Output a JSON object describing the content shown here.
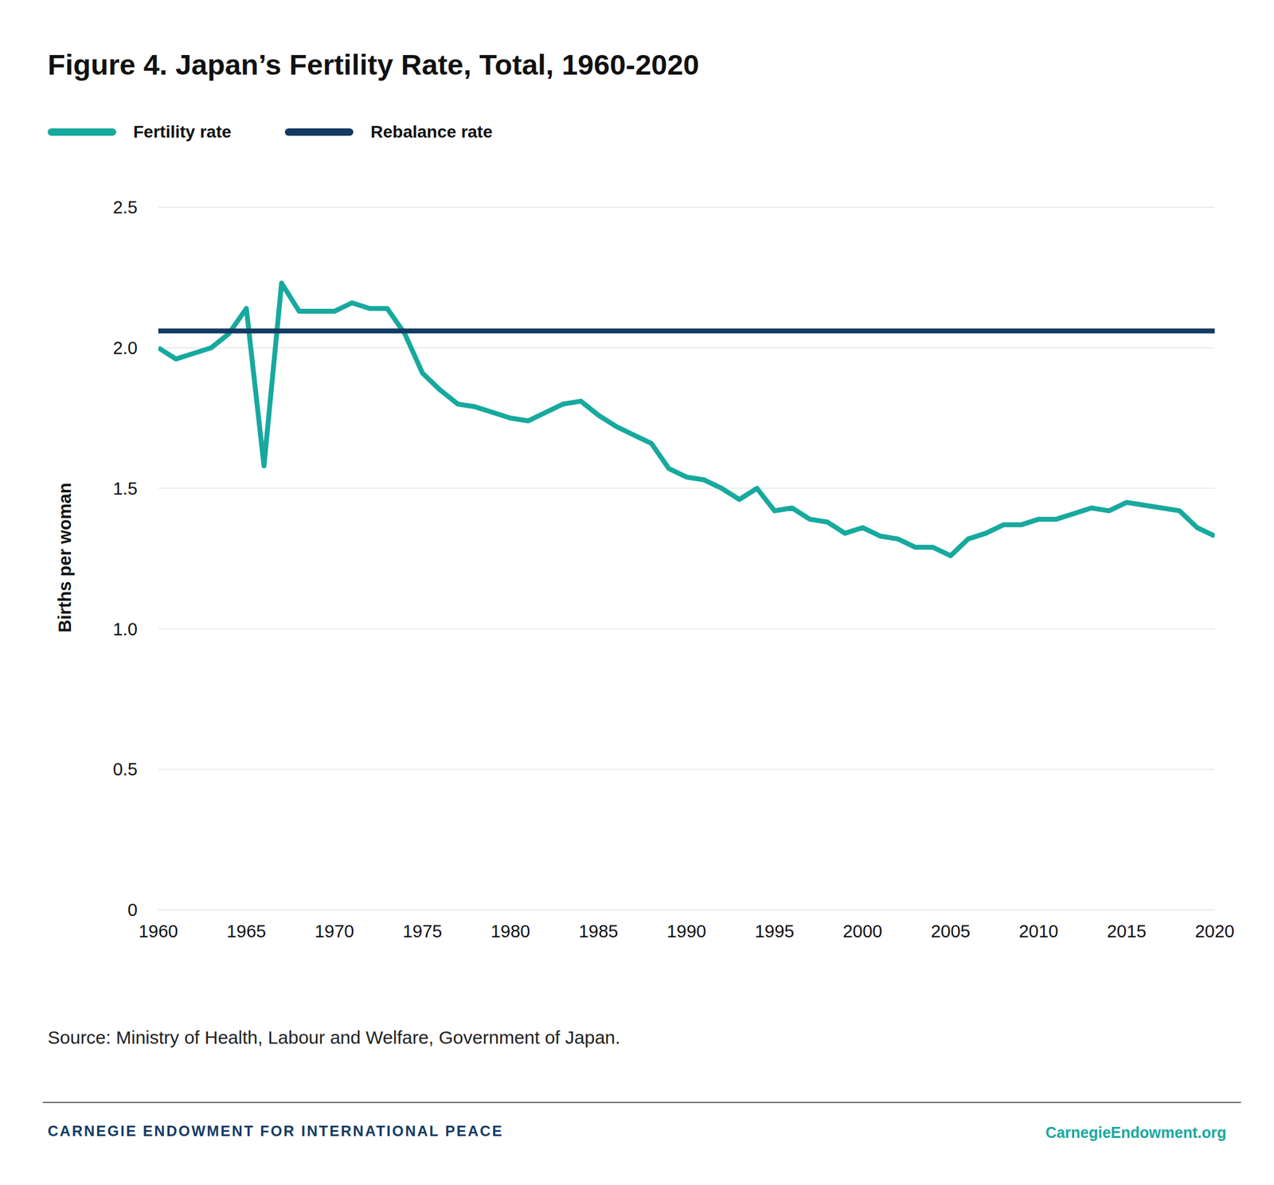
{
  "chart_data": {
    "type": "line",
    "title": "Figure 4. Japan’s Fertility Rate, Total, 1960-2020",
    "y_label": "Births per woman",
    "source": "Source: Ministry of Health, Labour and Welfare, Government of Japan.",
    "footer": {
      "left": "CARNEGIE ENDOWMENT FOR INTERNATIONAL PEACE",
      "right": "CarnegieEndowment.org"
    },
    "x": [
      1960,
      1961,
      1962,
      1963,
      1964,
      1965,
      1966,
      1967,
      1968,
      1969,
      1970,
      1971,
      1972,
      1973,
      1974,
      1975,
      1976,
      1977,
      1978,
      1979,
      1980,
      1981,
      1982,
      1983,
      1984,
      1985,
      1986,
      1987,
      1988,
      1989,
      1990,
      1991,
      1992,
      1993,
      1994,
      1995,
      1996,
      1997,
      1998,
      1999,
      2000,
      2001,
      2002,
      2003,
      2004,
      2005,
      2006,
      2007,
      2008,
      2009,
      2010,
      2011,
      2012,
      2013,
      2014,
      2015,
      2016,
      2017,
      2018,
      2019,
      2020
    ],
    "series": [
      {
        "name": "Fertility rate",
        "color": "#17a99e",
        "values": [
          2.0,
          1.96,
          1.98,
          2.0,
          2.05,
          2.14,
          1.58,
          2.23,
          2.13,
          2.13,
          2.13,
          2.16,
          2.14,
          2.14,
          2.05,
          1.91,
          1.85,
          1.8,
          1.79,
          1.77,
          1.75,
          1.74,
          1.77,
          1.8,
          1.81,
          1.76,
          1.72,
          1.69,
          1.66,
          1.57,
          1.54,
          1.53,
          1.5,
          1.46,
          1.5,
          1.42,
          1.43,
          1.39,
          1.38,
          1.34,
          1.36,
          1.33,
          1.32,
          1.29,
          1.29,
          1.26,
          1.32,
          1.34,
          1.37,
          1.37,
          1.39,
          1.39,
          1.41,
          1.43,
          1.42,
          1.45,
          1.44,
          1.43,
          1.42,
          1.36,
          1.33
        ]
      },
      {
        "name": "Rebalance rate",
        "color": "#123a63",
        "values": [
          2.06,
          2.06,
          2.06,
          2.06,
          2.06,
          2.06,
          2.06,
          2.06,
          2.06,
          2.06,
          2.06,
          2.06,
          2.06,
          2.06,
          2.06,
          2.06,
          2.06,
          2.06,
          2.06,
          2.06,
          2.06,
          2.06,
          2.06,
          2.06,
          2.06,
          2.06,
          2.06,
          2.06,
          2.06,
          2.06,
          2.06,
          2.06,
          2.06,
          2.06,
          2.06,
          2.06,
          2.06,
          2.06,
          2.06,
          2.06,
          2.06,
          2.06,
          2.06,
          2.06,
          2.06,
          2.06,
          2.06,
          2.06,
          2.06,
          2.06,
          2.06,
          2.06,
          2.06,
          2.06,
          2.06,
          2.06,
          2.06,
          2.06,
          2.06,
          2.06,
          2.06
        ]
      }
    ],
    "xlim": [
      1960,
      2020
    ],
    "xticks": [
      1960,
      1965,
      1970,
      1975,
      1980,
      1985,
      1990,
      1995,
      2000,
      2005,
      2010,
      2015,
      2020
    ],
    "ylim": [
      0,
      2.5
    ],
    "yticks": [
      0,
      0.5,
      {
        "value": 1,
        "label": "1.0"
      },
      1.5,
      {
        "value": 2,
        "label": "2.0"
      },
      2.5
    ],
    "grid": true,
    "legend": "top left"
  }
}
